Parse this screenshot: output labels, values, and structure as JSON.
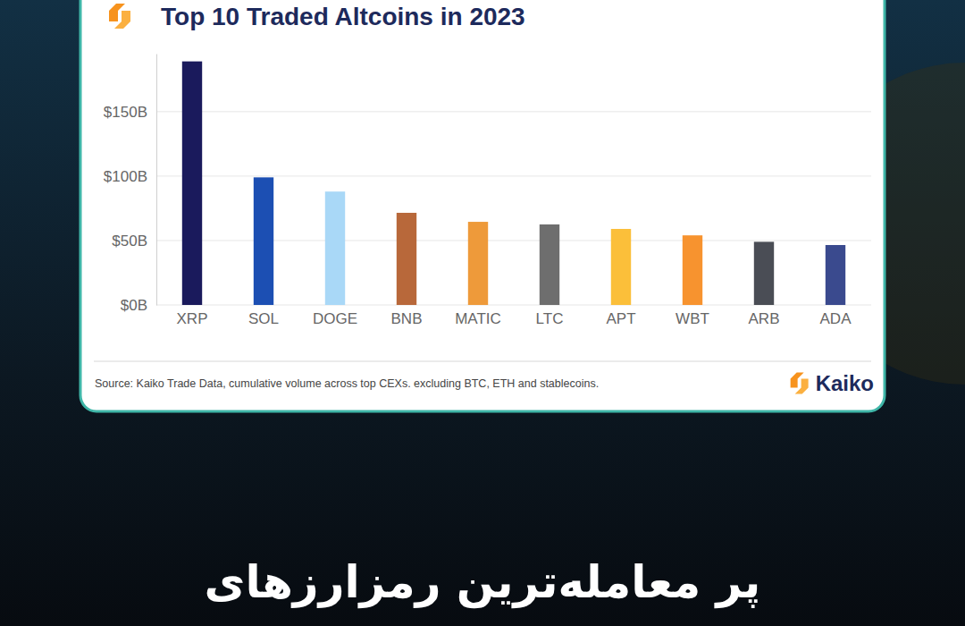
{
  "chart_data": {
    "type": "bar",
    "title": "Top 10 Traded Altcoins in 2023",
    "categories": [
      "XRP",
      "SOL",
      "DOGE",
      "BNB",
      "MATIC",
      "LTC",
      "APT",
      "WBT",
      "ARB",
      "ADA"
    ],
    "values": [
      189,
      99,
      88,
      71.5,
      64.5,
      62.5,
      59,
      54,
      49,
      46.5
    ],
    "colors": [
      "#1a1a5c",
      "#1c4fb3",
      "#a9d8f7",
      "#b8683a",
      "#ee9a3a",
      "#6e6e6e",
      "#fbbf3a",
      "#f7932f",
      "#4a4d55",
      "#3a4a8e"
    ],
    "ylim": [
      0,
      195
    ],
    "yticks": [
      {
        "value": 0,
        "label": "$0B"
      },
      {
        "value": 50,
        "label": "$50B"
      },
      {
        "value": 100,
        "label": "$100B"
      },
      {
        "value": 150,
        "label": "$150B"
      }
    ],
    "grid": true,
    "source": "Source: Kaiko Trade Data, cumulative volume across top CEXs. excluding BTC, ETH and stablecoins.",
    "brand": "Kaiko",
    "caption": "پر معامله‌ترین رمزارزهای"
  }
}
